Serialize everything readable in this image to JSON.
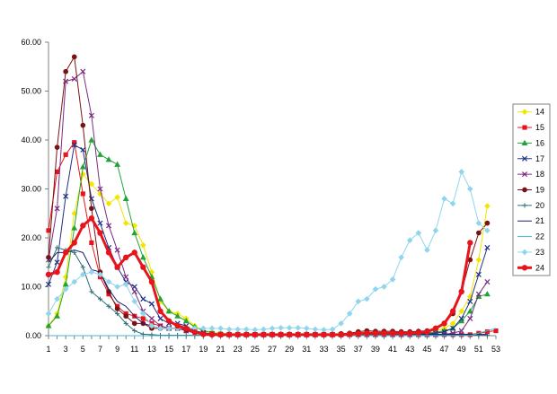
{
  "chart_data": {
    "type": "line",
    "x": [
      1,
      2,
      3,
      4,
      5,
      6,
      7,
      8,
      9,
      10,
      11,
      12,
      13,
      14,
      15,
      16,
      17,
      18,
      19,
      20,
      21,
      22,
      23,
      24,
      25,
      26,
      27,
      28,
      29,
      30,
      31,
      32,
      33,
      34,
      35,
      36,
      37,
      38,
      39,
      40,
      41,
      42,
      43,
      44,
      45,
      46,
      47,
      48,
      49,
      50,
      51,
      52,
      53
    ],
    "x_tick_labels": [
      "1",
      "3",
      "5",
      "7",
      "9",
      "11",
      "13",
      "15",
      "17",
      "19",
      "21",
      "23",
      "25",
      "27",
      "29",
      "31",
      "33",
      "35",
      "37",
      "39",
      "41",
      "43",
      "45",
      "47",
      "49",
      "51",
      "53"
    ],
    "xlim": [
      1,
      53
    ],
    "ylim": [
      0,
      60
    ],
    "y_tick_labels": [
      "0.00",
      "10.00",
      "20.00",
      "30.00",
      "40.00",
      "50.00",
      "60.00"
    ],
    "grid": false,
    "legend_position": "right",
    "series": [
      {
        "name": "14",
        "color": "#f2e500",
        "marker": "diamond",
        "values": [
          2.0,
          4.5,
          12.0,
          25.0,
          33.0,
          31.0,
          29.0,
          27.0,
          28.3,
          23.0,
          22.5,
          18.5,
          13.0,
          7.0,
          5.0,
          4.5,
          3.5,
          2.0,
          1.0,
          0.8,
          0.5,
          0.4,
          0.3,
          0.3,
          0.3,
          0.3,
          0.3,
          0.3,
          0.3,
          0.3,
          0.3,
          0.3,
          0.3,
          0.3,
          0.4,
          0.4,
          0.5,
          0.5,
          0.6,
          0.6,
          0.6,
          0.7,
          0.7,
          0.8,
          0.9,
          1.0,
          1.5,
          2.5,
          5.0,
          8.0,
          15.5,
          26.5,
          null
        ]
      },
      {
        "name": "15",
        "color": "#e8141c",
        "marker": "square",
        "values": [
          21.5,
          33.5,
          37.0,
          39.5,
          29.0,
          19.0,
          12.0,
          8.5,
          6.0,
          4.5,
          4.0,
          3.5,
          2.5,
          2.0,
          1.5,
          1.5,
          1.0,
          0.8,
          0.5,
          0.3,
          0.2,
          0.2,
          0.2,
          0.2,
          0.2,
          0.2,
          0.2,
          0.2,
          0.2,
          0.2,
          0.2,
          0.2,
          0.2,
          0.2,
          0.2,
          0.2,
          0.2,
          0.2,
          0.2,
          0.2,
          0.2,
          0.2,
          0.2,
          0.2,
          0.2,
          0.2,
          0.2,
          0.2,
          0.2,
          0.2,
          0.5,
          0.8,
          1.0
        ]
      },
      {
        "name": "16",
        "color": "#22a33a",
        "marker": "triangle",
        "values": [
          2.0,
          4.0,
          10.5,
          22.0,
          34.5,
          40.0,
          37.0,
          36.0,
          35.0,
          28.0,
          21.0,
          16.0,
          12.0,
          7.5,
          5.0,
          4.0,
          3.0,
          1.8,
          1.0,
          0.6,
          0.3,
          0.2,
          0.2,
          0.2,
          0.2,
          0.2,
          0.2,
          0.2,
          0.2,
          0.2,
          0.2,
          0.2,
          0.2,
          0.2,
          0.3,
          0.3,
          0.3,
          0.4,
          0.4,
          0.4,
          0.5,
          0.5,
          0.5,
          0.6,
          0.6,
          0.7,
          1.0,
          1.5,
          3.0,
          5.0,
          8.0,
          8.5,
          null
        ]
      },
      {
        "name": "17",
        "color": "#1f2f86",
        "marker": "x",
        "values": [
          10.5,
          15.0,
          28.5,
          39.0,
          38.0,
          28.0,
          23.0,
          18.0,
          14.0,
          11.0,
          10.0,
          7.5,
          6.5,
          3.5,
          2.5,
          2.5,
          2.0,
          1.0,
          0.6,
          0.4,
          0.3,
          0.2,
          0.2,
          0.2,
          0.2,
          0.2,
          0.2,
          0.2,
          0.2,
          0.2,
          0.2,
          0.2,
          0.2,
          0.2,
          0.2,
          0.3,
          0.3,
          0.3,
          0.3,
          0.3,
          0.3,
          0.3,
          0.3,
          0.4,
          0.4,
          0.5,
          0.8,
          1.5,
          3.5,
          7.0,
          12.5,
          18.0,
          null
        ]
      },
      {
        "name": "18",
        "color": "#7a2a82",
        "marker": "x",
        "values": [
          15.5,
          26.0,
          52.0,
          52.5,
          54.0,
          45.0,
          30.0,
          22.5,
          17.5,
          12.0,
          9.0,
          5.0,
          3.5,
          2.0,
          1.5,
          1.5,
          1.0,
          0.5,
          0.4,
          0.3,
          0.2,
          0.2,
          0.2,
          0.2,
          0.2,
          0.2,
          0.2,
          0.2,
          0.2,
          0.2,
          0.2,
          0.2,
          0.2,
          0.2,
          0.2,
          0.2,
          0.2,
          0.2,
          0.2,
          0.2,
          0.2,
          0.2,
          0.2,
          0.2,
          0.2,
          0.2,
          0.3,
          0.5,
          1.0,
          3.5,
          8.5,
          11.0,
          null
        ]
      },
      {
        "name": "19",
        "color": "#7a1414",
        "marker": "circle",
        "values": [
          16.0,
          38.5,
          54.0,
          57.0,
          43.0,
          26.0,
          13.0,
          9.0,
          5.5,
          4.0,
          2.5,
          2.5,
          1.5,
          1.5,
          1.5,
          1.5,
          1.2,
          0.8,
          0.5,
          0.3,
          0.3,
          0.3,
          0.3,
          0.3,
          0.3,
          0.3,
          0.3,
          0.3,
          0.3,
          0.3,
          0.3,
          0.3,
          0.3,
          0.3,
          0.4,
          0.5,
          0.8,
          1.0,
          0.9,
          0.9,
          0.9,
          0.8,
          0.8,
          0.9,
          1.0,
          1.5,
          2.5,
          4.5,
          9.0,
          15.5,
          21.0,
          23.0,
          null
        ]
      },
      {
        "name": "20",
        "color": "#2e6e78",
        "marker": "plus",
        "values": [
          14.0,
          18.0,
          17.5,
          17.0,
          14.0,
          9.0,
          7.5,
          6.0,
          4.5,
          2.5,
          1.0,
          0.3,
          0.2,
          0.1,
          0.1,
          0.1,
          0.1,
          0.1,
          0.1,
          0.1,
          0.1,
          0.1,
          0.1,
          0.1,
          0.1,
          0.1,
          0.1,
          0.1,
          0.1,
          0.1,
          0.1,
          0.1,
          0.1,
          0.1,
          0.1,
          0.1,
          0.1,
          0.1,
          0.1,
          0.1,
          0.1,
          0.1,
          0.1,
          0.1,
          0.1,
          0.1,
          0.1,
          0.1,
          0.1,
          0.1,
          0.1,
          0.1,
          null
        ]
      },
      {
        "name": "21",
        "color": "#1b1f6b",
        "marker": "line",
        "values": [
          15.0,
          17.0,
          17.0,
          17.5,
          17.0,
          13.5,
          13.0,
          9.5,
          7.0,
          6.0,
          4.0,
          2.5,
          2.0,
          1.5,
          1.5,
          1.5,
          1.5,
          1.0,
          0.5,
          0.4,
          0.3,
          0.3,
          0.3,
          0.3,
          0.3,
          0.3,
          0.3,
          0.3,
          0.3,
          0.3,
          0.3,
          0.3,
          0.3,
          0.3,
          0.3,
          0.3,
          0.3,
          0.3,
          0.3,
          0.3,
          0.3,
          0.3,
          0.3,
          0.3,
          0.3,
          0.3,
          0.3,
          0.3,
          0.3,
          0.3,
          0.3,
          0.3,
          null
        ]
      },
      {
        "name": "22",
        "color": "#41b9d8",
        "marker": "line",
        "values": [
          0.0,
          0.0,
          0.0,
          0.0,
          0.0,
          0.0,
          0.0,
          0.0,
          0.0,
          0.0,
          0.0,
          0.0,
          0.0,
          0.0,
          0.0,
          0.0,
          0.0,
          0.0,
          0.0,
          0.0,
          0.0,
          0.0,
          0.0,
          0.0,
          0.0,
          0.0,
          0.0,
          0.0,
          0.0,
          0.0,
          0.0,
          0.0,
          0.0,
          0.0,
          0.0,
          0.0,
          0.0,
          0.0,
          0.0,
          0.0,
          0.0,
          0.0,
          0.0,
          0.0,
          0.0,
          0.0,
          0.0,
          0.0,
          0.0,
          0.0,
          0.5,
          1.0,
          1.5
        ]
      },
      {
        "name": "23",
        "color": "#8fd6ec",
        "marker": "diamond",
        "values": [
          4.5,
          7.5,
          9.5,
          11.0,
          12.5,
          13.0,
          12.5,
          11.0,
          10.0,
          10.5,
          7.0,
          4.5,
          2.0,
          1.5,
          1.5,
          1.5,
          1.5,
          1.5,
          1.5,
          1.5,
          1.5,
          1.3,
          1.3,
          1.3,
          1.2,
          1.3,
          1.5,
          1.6,
          1.6,
          1.6,
          1.5,
          1.3,
          1.2,
          1.3,
          2.5,
          4.5,
          7.0,
          7.5,
          9.5,
          10.0,
          11.5,
          16.0,
          19.5,
          21.0,
          17.5,
          21.5,
          28.0,
          27.0,
          33.5,
          30.0,
          23.0,
          21.5,
          null
        ]
      },
      {
        "name": "24",
        "color": "#e8141c",
        "marker": "circle-bold",
        "values": [
          12.5,
          13.0,
          17.0,
          19.0,
          22.5,
          24.0,
          21.0,
          17.0,
          14.0,
          16.0,
          17.0,
          14.0,
          11.0,
          5.0,
          3.0,
          2.0,
          1.5,
          0.7,
          0.3,
          0.2,
          0.2,
          0.2,
          0.2,
          0.2,
          0.2,
          0.2,
          0.2,
          0.2,
          0.2,
          0.2,
          0.2,
          0.2,
          0.2,
          0.2,
          0.2,
          0.3,
          0.4,
          0.5,
          0.5,
          0.5,
          0.5,
          0.5,
          0.5,
          0.6,
          0.8,
          1.5,
          2.5,
          5.0,
          9.0,
          19.0,
          null,
          null,
          null
        ]
      }
    ]
  }
}
